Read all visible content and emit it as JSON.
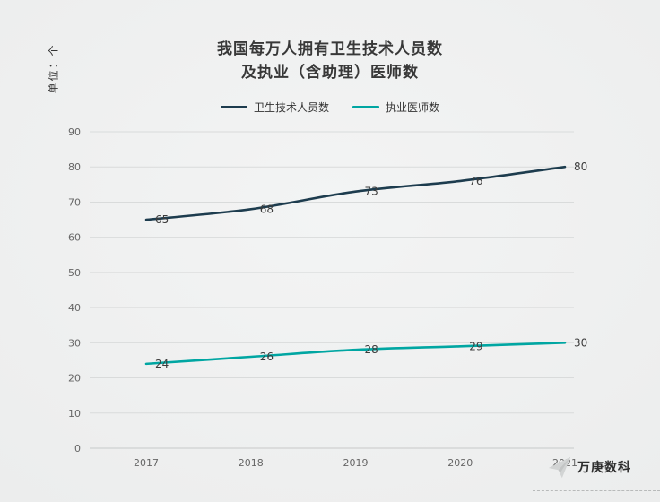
{
  "title": {
    "line1": "我国每万人拥有卫生技术人员数",
    "line2": "及执业（含助理）医师数"
  },
  "unit_label": "单位：个",
  "legend": {
    "items": [
      {
        "label": "卫生技术人员数",
        "color": "#1d3c4e"
      },
      {
        "label": "执业医师数",
        "color": "#00a6a2"
      }
    ]
  },
  "watermark": {
    "text": "万庚数科"
  },
  "chart_data": {
    "type": "line",
    "title": "我国每万人拥有卫生技术人员数及执业（含助理）医师数",
    "categories": [
      "2017",
      "2018",
      "2019",
      "2020",
      "2021"
    ],
    "series": [
      {
        "name": "卫生技术人员数",
        "color": "#1d3c4e",
        "values": [
          65,
          68,
          73,
          76,
          80
        ]
      },
      {
        "name": "执业医师数",
        "color": "#00a6a2",
        "values": [
          24,
          26,
          28,
          29,
          30
        ]
      }
    ],
    "xlabel": "",
    "ylabel": "单位：个",
    "ylim": [
      0,
      90
    ],
    "ytick_step": 10,
    "grid": true,
    "legend_position": "top",
    "axis_text_color": "#666666",
    "data_label_color": "#3c3c3c",
    "gridline_color": "#d9dbdb",
    "baseline_color": "#c7c9c9"
  }
}
